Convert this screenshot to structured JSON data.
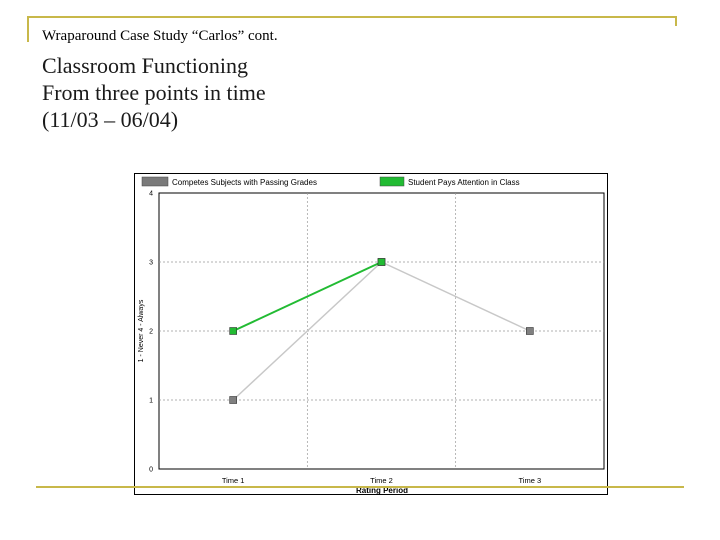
{
  "slide": {
    "subtitle": "Wraparound Case Study “Carlos” cont.",
    "heading_lines": [
      "Classroom Functioning",
      "From three points in time",
      "(11/03 – 06/04)"
    ]
  },
  "chart_data": {
    "type": "line",
    "xlabel": "Rating Period",
    "ylabel": "1 - Never 4 - Always",
    "categories": [
      "Time 1",
      "Time 2",
      "Time 3"
    ],
    "ylim": [
      0,
      4
    ],
    "yticks": [
      "0",
      "1",
      "2",
      "3",
      "4"
    ],
    "grid": true,
    "legend_position": "top",
    "series": [
      {
        "name": "Competes Subjects with Passing Grades",
        "color": "#c8c8c8",
        "marker_color": "#808080",
        "values": [
          1,
          3,
          2
        ]
      },
      {
        "name": "Student Pays Attention in Class",
        "color": "#22bb33",
        "marker_color": "#22bb33",
        "values": [
          2,
          3,
          null
        ]
      }
    ]
  }
}
